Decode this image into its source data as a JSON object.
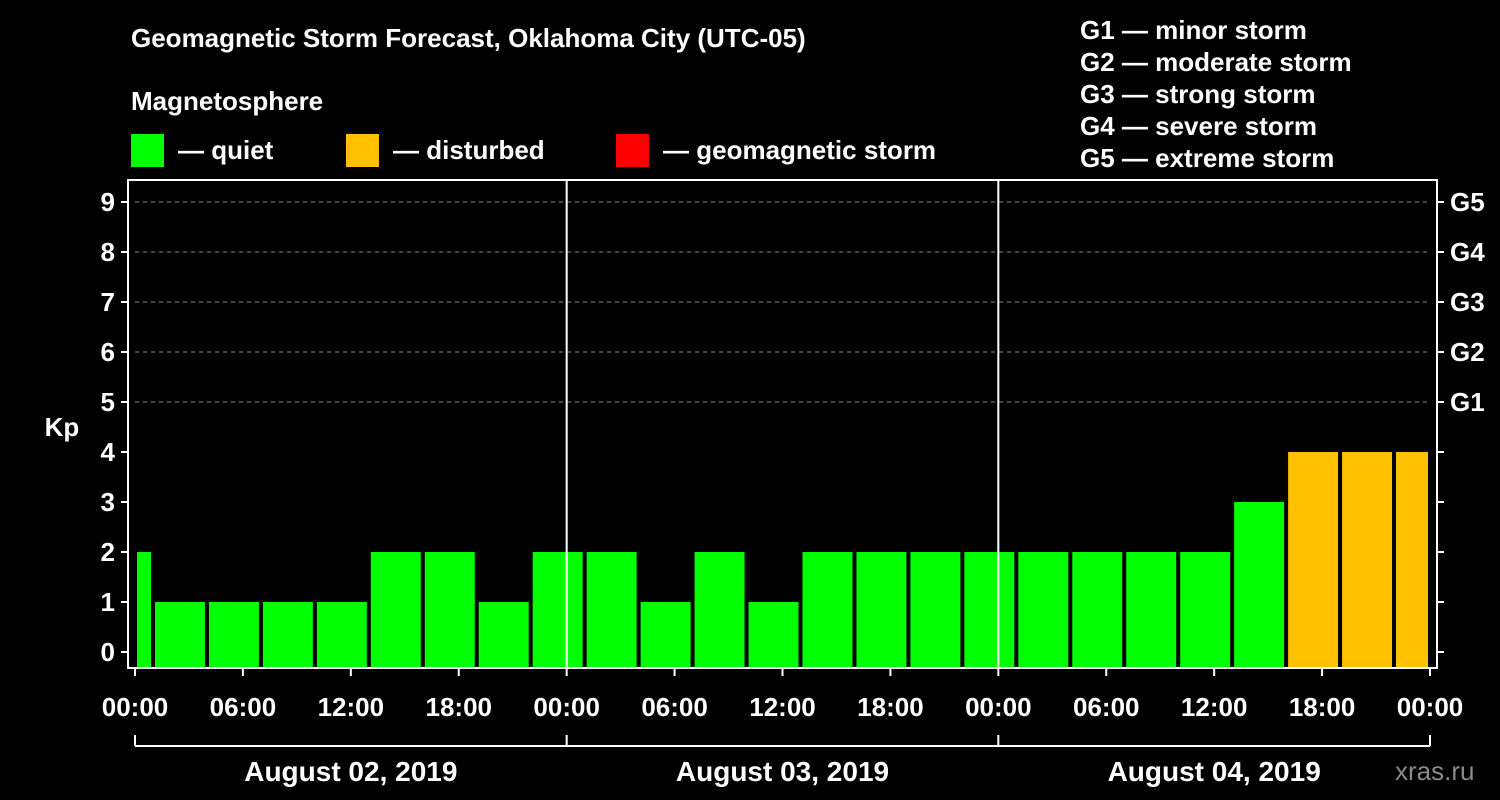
{
  "title": "Geomagnetic Storm Forecast, Oklahoma City (UTC-05)",
  "subtitle": "Magnetosphere",
  "legend": [
    {
      "label": "— quiet",
      "color": "#00ff00"
    },
    {
      "label": "— disturbed",
      "color": "#ffc000"
    },
    {
      "label": "— geomagnetic storm",
      "color": "#ff0000"
    }
  ],
  "storm_scale": [
    "G1 — minor storm",
    "G2 — moderate storm",
    "G3 — strong storm",
    "G4 — severe storm",
    "G5 — extreme storm"
  ],
  "credit": "xras.ru",
  "colors": {
    "quiet": "#00ff00",
    "disturbed": "#ffc000",
    "storm": "#ff0000",
    "background": "#000000",
    "axis": "#ffffff"
  },
  "chart_data": {
    "type": "bar",
    "ylabel": "Kp",
    "ylim": [
      0,
      9
    ],
    "yticks": [
      0,
      1,
      2,
      3,
      4,
      5,
      6,
      7,
      8,
      9
    ],
    "right_axis": [
      {
        "kp": 5,
        "label": "G1"
      },
      {
        "kp": 6,
        "label": "G2"
      },
      {
        "kp": 7,
        "label": "G3"
      },
      {
        "kp": 8,
        "label": "G4"
      },
      {
        "kp": 9,
        "label": "G5"
      }
    ],
    "grid": "dashed horizontal at Kp 5-9",
    "x_tick_labels": [
      "00:00",
      "06:00",
      "12:00",
      "18:00",
      "00:00",
      "06:00",
      "12:00",
      "18:00",
      "00:00",
      "06:00",
      "12:00",
      "18:00",
      "00:00"
    ],
    "days": [
      "August 02, 2019",
      "August 03, 2019",
      "August 04, 2019"
    ],
    "bars": [
      {
        "start_hour": 0,
        "end_hour": 1,
        "kp": 2,
        "state": "quiet"
      },
      {
        "start_hour": 1,
        "end_hour": 4,
        "kp": 1,
        "state": "quiet"
      },
      {
        "start_hour": 4,
        "end_hour": 7,
        "kp": 1,
        "state": "quiet"
      },
      {
        "start_hour": 7,
        "end_hour": 10,
        "kp": 1,
        "state": "quiet"
      },
      {
        "start_hour": 10,
        "end_hour": 13,
        "kp": 1,
        "state": "quiet"
      },
      {
        "start_hour": 13,
        "end_hour": 16,
        "kp": 2,
        "state": "quiet"
      },
      {
        "start_hour": 16,
        "end_hour": 19,
        "kp": 2,
        "state": "quiet"
      },
      {
        "start_hour": 19,
        "end_hour": 22,
        "kp": 1,
        "state": "quiet"
      },
      {
        "start_hour": 22,
        "end_hour": 25,
        "kp": 2,
        "state": "quiet"
      },
      {
        "start_hour": 25,
        "end_hour": 28,
        "kp": 2,
        "state": "quiet"
      },
      {
        "start_hour": 28,
        "end_hour": 31,
        "kp": 1,
        "state": "quiet"
      },
      {
        "start_hour": 31,
        "end_hour": 34,
        "kp": 2,
        "state": "quiet"
      },
      {
        "start_hour": 34,
        "end_hour": 37,
        "kp": 1,
        "state": "quiet"
      },
      {
        "start_hour": 37,
        "end_hour": 40,
        "kp": 2,
        "state": "quiet"
      },
      {
        "start_hour": 40,
        "end_hour": 43,
        "kp": 2,
        "state": "quiet"
      },
      {
        "start_hour": 43,
        "end_hour": 46,
        "kp": 2,
        "state": "quiet"
      },
      {
        "start_hour": 46,
        "end_hour": 49,
        "kp": 2,
        "state": "quiet"
      },
      {
        "start_hour": 49,
        "end_hour": 52,
        "kp": 2,
        "state": "quiet"
      },
      {
        "start_hour": 52,
        "end_hour": 55,
        "kp": 2,
        "state": "quiet"
      },
      {
        "start_hour": 55,
        "end_hour": 58,
        "kp": 2,
        "state": "quiet"
      },
      {
        "start_hour": 58,
        "end_hour": 61,
        "kp": 2,
        "state": "quiet"
      },
      {
        "start_hour": 61,
        "end_hour": 64,
        "kp": 3,
        "state": "quiet"
      },
      {
        "start_hour": 64,
        "end_hour": 67,
        "kp": 4,
        "state": "disturbed"
      },
      {
        "start_hour": 67,
        "end_hour": 70,
        "kp": 4,
        "state": "disturbed"
      },
      {
        "start_hour": 70,
        "end_hour": 72,
        "kp": 4,
        "state": "disturbed"
      }
    ]
  }
}
